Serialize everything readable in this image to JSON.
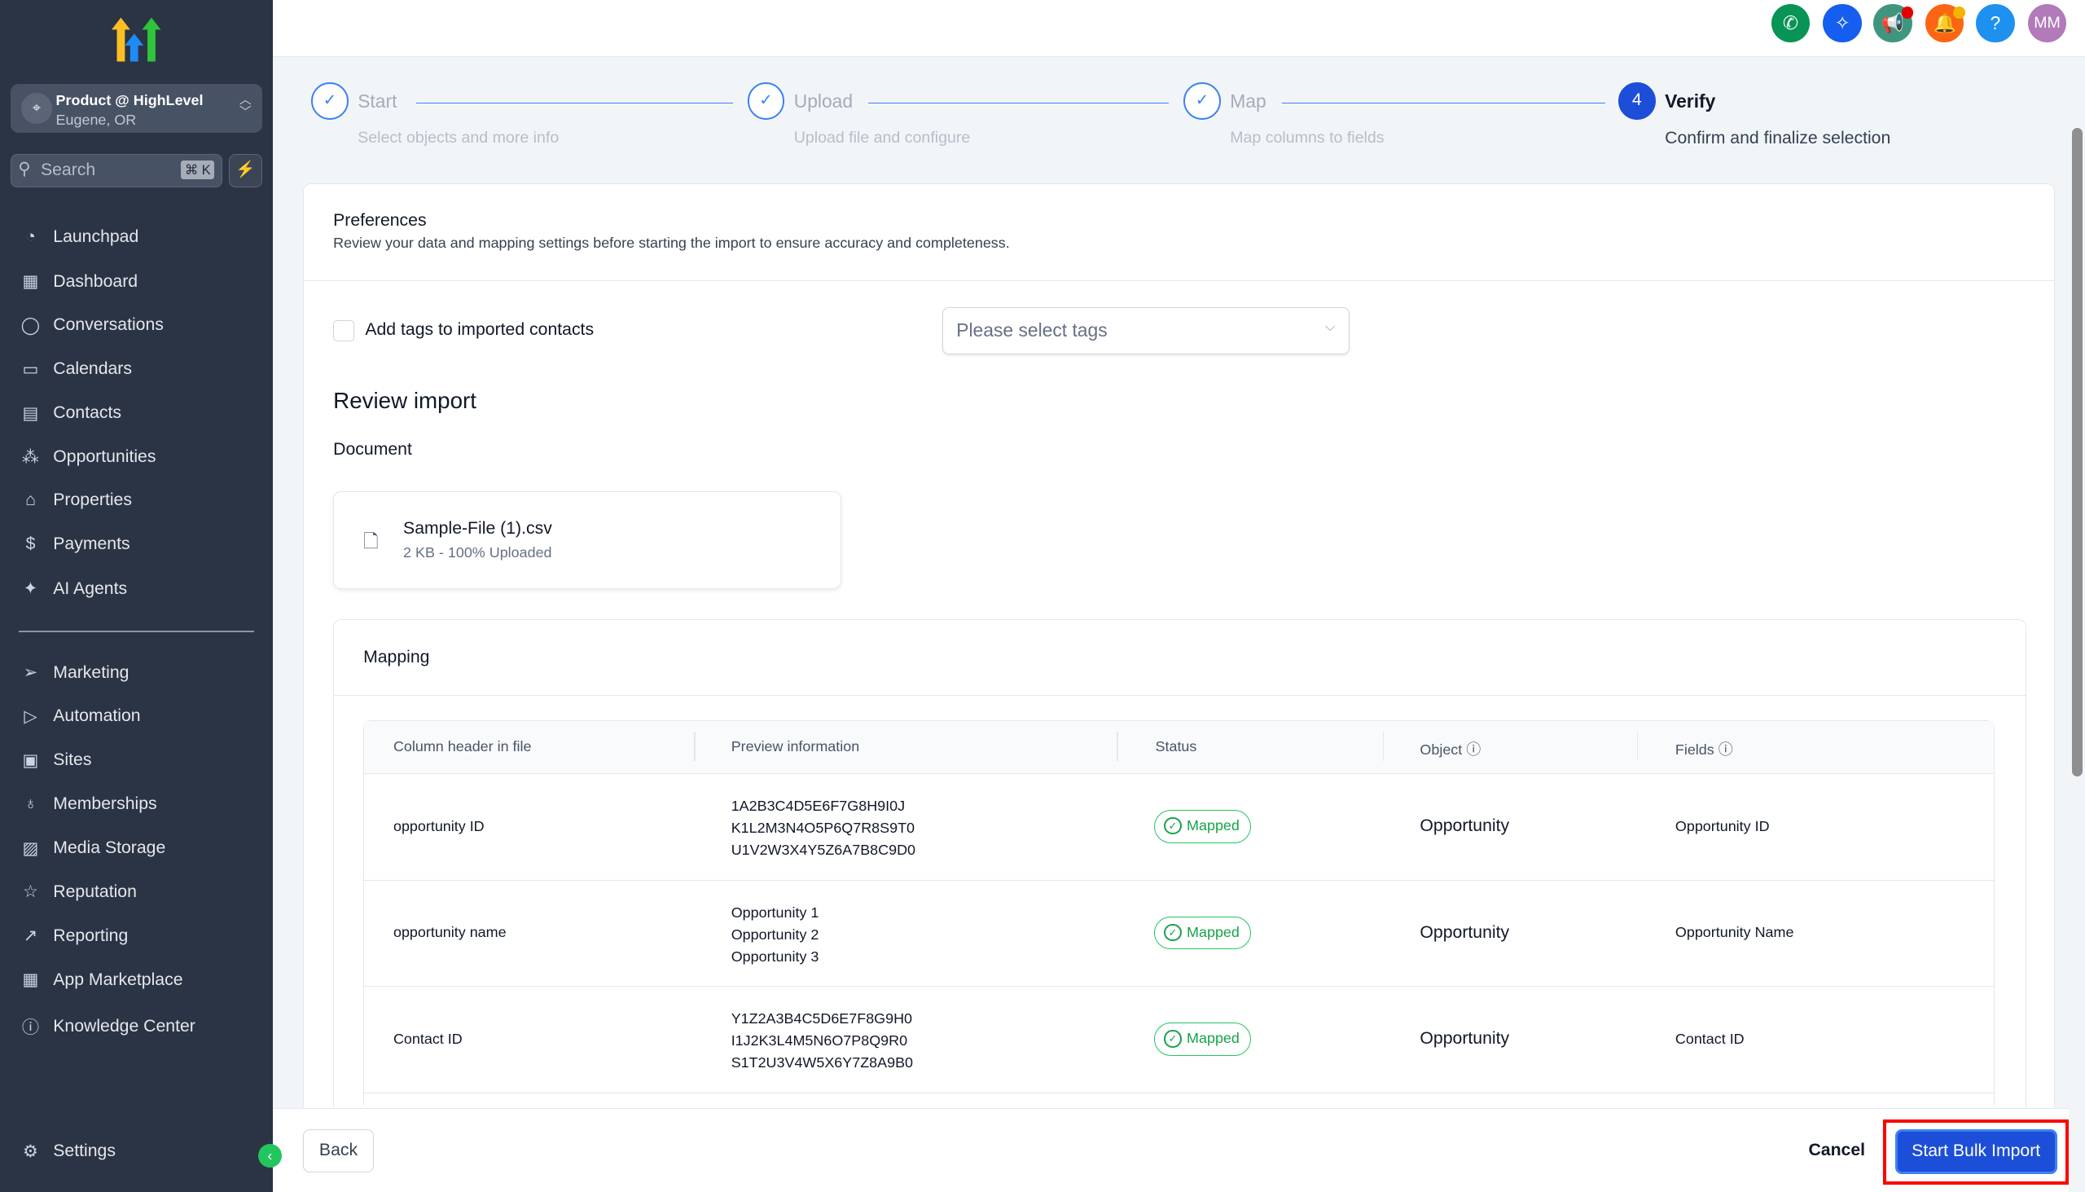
{
  "sidebar": {
    "location_name": "Product @ HighLevel",
    "location_city": "Eugene, OR",
    "search_placeholder": "Search",
    "search_shortcut": "⌘ K",
    "items": [
      {
        "label": "Launchpad",
        "icon": "rocket-icon"
      },
      {
        "label": "Dashboard",
        "icon": "grid-icon"
      },
      {
        "label": "Conversations",
        "icon": "chat-icon"
      },
      {
        "label": "Calendars",
        "icon": "calendar-icon"
      },
      {
        "label": "Contacts",
        "icon": "contacts-icon"
      },
      {
        "label": "Opportunities",
        "icon": "opportunities-icon"
      },
      {
        "label": "Properties",
        "icon": "home-icon"
      },
      {
        "label": "Payments",
        "icon": "receipt-icon"
      },
      {
        "label": "AI Agents",
        "icon": "sparkle-icon"
      }
    ],
    "items2": [
      {
        "label": "Marketing",
        "icon": "send-icon"
      },
      {
        "label": "Automation",
        "icon": "automation-icon"
      },
      {
        "label": "Sites",
        "icon": "sites-icon"
      },
      {
        "label": "Memberships",
        "icon": "membership-icon"
      },
      {
        "label": "Media Storage",
        "icon": "image-icon"
      },
      {
        "label": "Reputation",
        "icon": "star-icon"
      },
      {
        "label": "Reporting",
        "icon": "trend-icon"
      },
      {
        "label": "App Marketplace",
        "icon": "apps-icon"
      },
      {
        "label": "Knowledge Center",
        "icon": "info-icon"
      }
    ],
    "settings": "Settings"
  },
  "topbar": {
    "avatar_initials": "MM",
    "colors": {
      "phone": "#079455",
      "ai": "#155eef",
      "announce": "#3e967e",
      "bell": "#fb6514",
      "help": "#1e90f0",
      "avatar": "#b27ab9"
    }
  },
  "stepper": [
    {
      "title": "Start",
      "subtitle": "Select objects and more info",
      "state": "done"
    },
    {
      "title": "Upload",
      "subtitle": "Upload file and configure",
      "state": "done"
    },
    {
      "title": "Map",
      "subtitle": "Map columns to fields",
      "state": "done"
    },
    {
      "number": "4",
      "title": "Verify",
      "subtitle": "Confirm and finalize selection",
      "state": "active"
    }
  ],
  "preferences": {
    "title": "Preferences",
    "description": "Review your data and mapping settings before starting the import to ensure accuracy and completeness.",
    "tags_label": "Add tags to imported contacts",
    "tags_checked": false,
    "tags_placeholder": "Please select tags"
  },
  "review": {
    "title": "Review import",
    "document_label": "Document",
    "file_name": "Sample-File (1).csv",
    "file_meta": "2 KB - 100% Uploaded"
  },
  "mapping": {
    "title": "Mapping",
    "headers": [
      "Column header in file",
      "Preview information",
      "Status",
      "Object",
      "Fields"
    ],
    "rows": [
      {
        "column": "opportunity ID",
        "preview": [
          "1A2B3C4D5E6F7G8H9I0J",
          "K1L2M3N4O5P6Q7R8S9T0",
          "U1V2W3X4Y5Z6A7B8C9D0"
        ],
        "status": "Mapped",
        "object": "Opportunity",
        "field": "Opportunity ID"
      },
      {
        "column": "opportunity name",
        "preview": [
          "Opportunity 1",
          "Opportunity 2",
          "Opportunity 3"
        ],
        "status": "Mapped",
        "object": "Opportunity",
        "field": "Opportunity Name"
      },
      {
        "column": "Contact ID",
        "preview": [
          "Y1Z2A3B4C5D6E7F8G9H0",
          "I1J2K3L4M5N6O7P8Q9R0",
          "S1T2U3V4W5X6Y7Z8A9B0"
        ],
        "status": "Mapped",
        "object": "Opportunity",
        "field": "Contact ID"
      }
    ]
  },
  "footer": {
    "back": "Back",
    "cancel": "Cancel",
    "start": "Start Bulk Import"
  }
}
